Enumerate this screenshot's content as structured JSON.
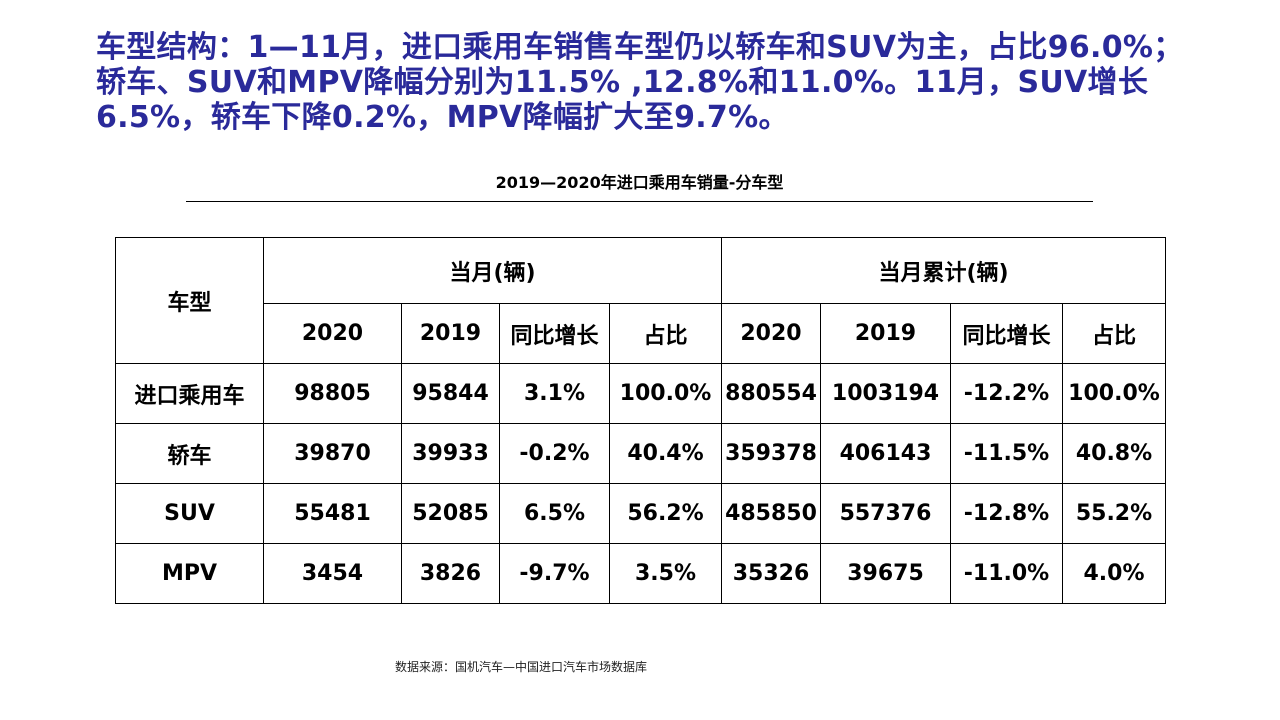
{
  "headline": {
    "line1": "车型结构：1—11月，进口乘用车销售车型仍以轿车和SUV为主，占比96.0%；",
    "line2": "轿车、SUV和MPV降幅分别为11.5% ,12.8%和11.0%。11月，SUV增长",
    "line3": "6.5%，轿车下降0.2%，MPV降幅扩大至9.7%。"
  },
  "table_title": "2019—2020年进口乘用车销量-分车型",
  "table": {
    "type_header": "车型",
    "group_month": "当月(辆)",
    "group_cumulative": "当月累计(辆)",
    "sub_headers": [
      "2020",
      "2019",
      "同比增长",
      "占比",
      "2020",
      "2019",
      "同比增长",
      "占比"
    ],
    "rows": [
      {
        "type": "进口乘用车",
        "cells": [
          "98805",
          "95844",
          "3.1%",
          "100.0%",
          "880554",
          "1003194",
          "-12.2%",
          "100.0%"
        ]
      },
      {
        "type": "轿车",
        "cells": [
          "39870",
          "39933",
          "-0.2%",
          "40.4%",
          "359378",
          "406143",
          "-11.5%",
          "40.8%"
        ]
      },
      {
        "type": "SUV",
        "cells": [
          "55481",
          "52085",
          "6.5%",
          "56.2%",
          "485850",
          "557376",
          "-12.8%",
          "55.2%"
        ]
      },
      {
        "type": "MPV",
        "cells": [
          "3454",
          "3826",
          "-9.7%",
          "3.5%",
          "35326",
          "39675",
          "-11.0%",
          "4.0%"
        ]
      }
    ]
  },
  "source": "数据来源：国机汽车—中国进口汽车市场数据库",
  "colors": {
    "headline": "#2a2a9a",
    "text": "#000000",
    "background": "#ffffff"
  }
}
